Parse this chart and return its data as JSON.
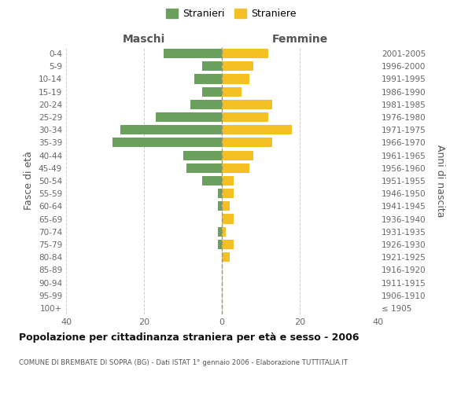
{
  "age_groups": [
    "100+",
    "95-99",
    "90-94",
    "85-89",
    "80-84",
    "75-79",
    "70-74",
    "65-69",
    "60-64",
    "55-59",
    "50-54",
    "45-49",
    "40-44",
    "35-39",
    "30-34",
    "25-29",
    "20-24",
    "15-19",
    "10-14",
    "5-9",
    "0-4"
  ],
  "birth_years": [
    "≤ 1905",
    "1906-1910",
    "1911-1915",
    "1916-1920",
    "1921-1925",
    "1926-1930",
    "1931-1935",
    "1936-1940",
    "1941-1945",
    "1946-1950",
    "1951-1955",
    "1956-1960",
    "1961-1965",
    "1966-1970",
    "1971-1975",
    "1976-1980",
    "1981-1985",
    "1986-1990",
    "1991-1995",
    "1996-2000",
    "2001-2005"
  ],
  "males": [
    0,
    0,
    0,
    0,
    0,
    1,
    1,
    0,
    1,
    1,
    5,
    9,
    10,
    28,
    26,
    17,
    8,
    5,
    7,
    5,
    15
  ],
  "females": [
    0,
    0,
    0,
    0,
    2,
    3,
    1,
    3,
    2,
    3,
    3,
    7,
    8,
    13,
    18,
    12,
    13,
    5,
    7,
    8,
    12
  ],
  "male_color": "#6a9f5e",
  "female_color": "#f5c023",
  "background_color": "#ffffff",
  "grid_color": "#cccccc",
  "title": "Popolazione per cittadinanza straniera per età e sesso - 2006",
  "subtitle": "COMUNE DI BREMBATE DI SOPRA (BG) - Dati ISTAT 1° gennaio 2006 - Elaborazione TUTTITALIA.IT",
  "ylabel_left": "Fasce di età",
  "ylabel_right": "Anni di nascita",
  "legend_male": "Stranieri",
  "legend_female": "Straniere",
  "xlim": 40,
  "maschi_label": "Maschi",
  "femmine_label": "Femmine"
}
